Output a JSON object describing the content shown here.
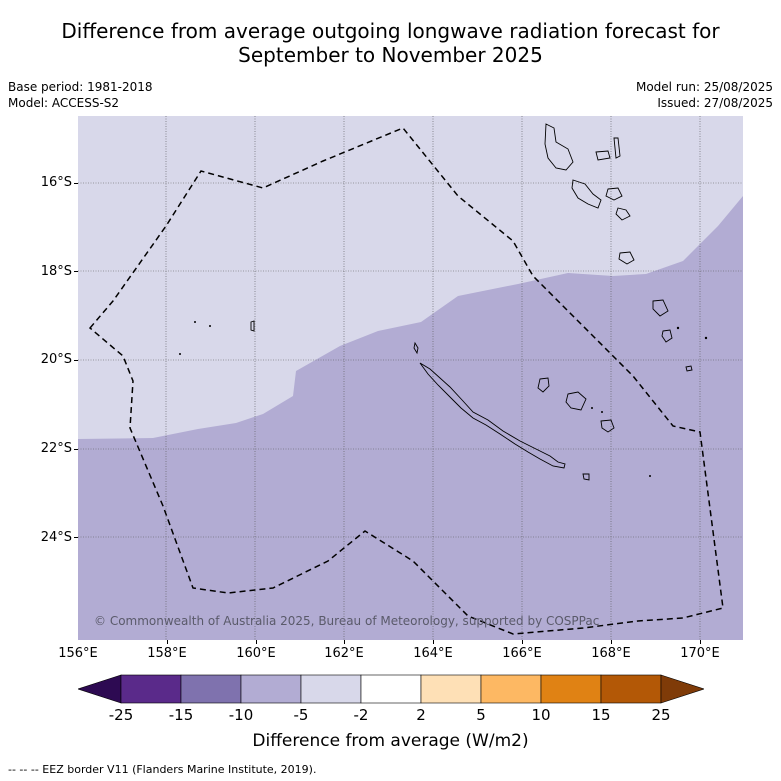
{
  "title": {
    "line1": "Difference from average outgoing longwave radiation forecast for",
    "line2": "September to November 2025"
  },
  "meta": {
    "base_period": "Base period: 1981-2018",
    "model": "Model: ACCESS-S2",
    "model_run": "Model run: 25/08/2025",
    "issued": "Issued: 27/08/2025"
  },
  "map": {
    "lat_labels": [
      "16°S",
      "18°S",
      "20°S",
      "22°S",
      "24°S"
    ],
    "lon_labels": [
      "156°E",
      "158°E",
      "160°E",
      "162°E",
      "164°E",
      "166°E",
      "168°E",
      "170°E"
    ],
    "copyright": "© Commonwealth of Australia 2025, Bureau of Meteorology, supported by COSPPac",
    "colors": {
      "minus5_to_minus2": "#d8d8ea",
      "minus10_to_minus5": "#b2acd3",
      "coast": "#000000",
      "eez": "#000000"
    }
  },
  "colorbar": {
    "labels": [
      "-25",
      "-15",
      "-10",
      "-5",
      "-2",
      "2",
      "5",
      "10",
      "15",
      "25"
    ],
    "colors": [
      "#2d0a52",
      "#5a2a8a",
      "#7f72ae",
      "#b2acd3",
      "#d8d8ea",
      "#ffffff",
      "#fee0b6",
      "#fdb863",
      "#e08214",
      "#b35806",
      "#7f3b08"
    ],
    "title": "Difference from average (W/m2)"
  },
  "footer": "--  --  -- EEZ border V11 (Flanders Marine Institute, 2019)."
}
